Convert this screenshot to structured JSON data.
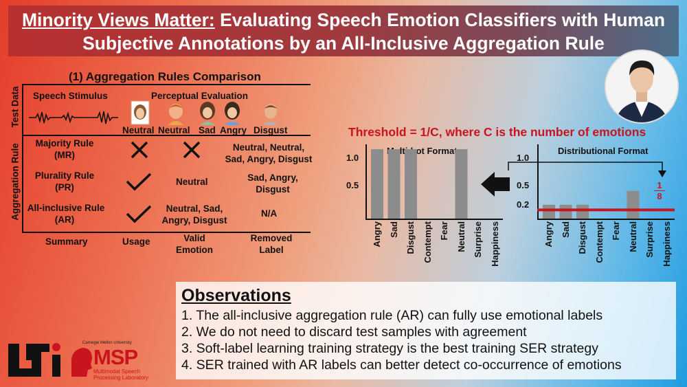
{
  "title": {
    "underlined": "Minority Views Matter:",
    "rest_line1": " Evaluating Speech Emotion Classifiers with Human",
    "line2": "Subjective Annotations by an All-Inclusive Aggregation Rule"
  },
  "comparison": {
    "heading": "(1) Aggregation Rules Comparison",
    "test_data_label": "Test Data",
    "aggregation_rule_label": "Aggregation Rule",
    "speech_stimulus": "Speech Stimulus",
    "perceptual_evaluation": "Perceptual Evaluation",
    "annotators": [
      "Neutral",
      "Neutral",
      "Sad",
      "Angry",
      "Disgust"
    ],
    "rows": [
      {
        "rule": "Majority Rule",
        "abbr": "(MR)",
        "usage": "cross",
        "valid": "",
        "removed": "Neutral, Neutral, Sad, Angry, Disgust"
      },
      {
        "rule": "Plurality Rule",
        "abbr": "(PR)",
        "usage": "check",
        "valid": "Neutral",
        "removed": "Sad, Angry, Disgust"
      },
      {
        "rule": "All-inclusive Rule",
        "abbr": "(AR)",
        "usage": "check",
        "valid": "Neutral, Sad, Angry, Disgust",
        "removed": "N/A"
      }
    ],
    "summary": {
      "summary": "Summary",
      "usage": "Usage",
      "valid": "Valid Emotion",
      "removed": "Removed Label"
    }
  },
  "threshold": "Threshold = 1/C, where C is the number of emotions",
  "chart_data": [
    {
      "type": "bar",
      "title": "Multi-hot Format",
      "categories": [
        "Angry",
        "Sad",
        "Disgust",
        "Contempt",
        "Fear",
        "Neutral",
        "Surprise",
        "Happiness"
      ],
      "values": [
        1,
        1,
        1,
        0,
        0,
        1,
        0,
        0
      ],
      "yticks": [
        "1.0",
        "0.5"
      ],
      "ylim": [
        0,
        1.05
      ]
    },
    {
      "type": "bar",
      "title": "Distributional Format",
      "categories": [
        "Angry",
        "Sad",
        "Disgust",
        "Contempt",
        "Fear",
        "Neutral",
        "Surprise",
        "Happiness"
      ],
      "values": [
        0.2,
        0.2,
        0.2,
        0,
        0,
        0.4,
        0,
        0
      ],
      "yticks": [
        "1.0",
        "0.5",
        "0.2"
      ],
      "threshold_label_num": "1",
      "threshold_label_den": "8",
      "threshold": 0.125,
      "ylim": [
        0,
        1.05
      ]
    }
  ],
  "observations": {
    "heading": "Observations",
    "items": [
      "1.  The all-inclusive aggregation rule  (AR) can fully use emotional labels",
      "2.  We do not need to discard test samples with agreement",
      "3.  Soft-label learning training strategy is the best training SER strategy",
      "4.  SER trained with AR labels can better detect co-occurrence of emotions"
    ]
  },
  "logos": {
    "lti": "LTI",
    "cmu": "Carnegie Mellon University",
    "msp": "MSP",
    "msp_sub1": "Multimodal Speech",
    "msp_sub2": "Processing Laboratory"
  },
  "colors": {
    "bar": "#8c8c8c",
    "threshold": "#c8141e",
    "title_red": "#c8141e"
  }
}
